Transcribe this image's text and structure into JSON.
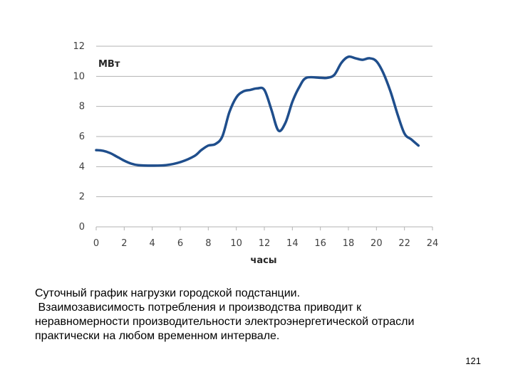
{
  "chart_data": {
    "type": "line",
    "xlabel": "часы",
    "ylabel": "МВт",
    "xlim": [
      0,
      24
    ],
    "ylim": [
      0,
      12
    ],
    "x_ticks": [
      "0",
      "2",
      "4",
      "6",
      "8",
      "10",
      "12",
      "14",
      "16",
      "18",
      "20",
      "22",
      "24"
    ],
    "y_ticks": [
      "0",
      "2",
      "4",
      "6",
      "8",
      "10",
      "12"
    ],
    "grid": true,
    "series": [
      {
        "color": "#1f4e8c",
        "points": [
          [
            0,
            5.1
          ],
          [
            0.5,
            5.05
          ],
          [
            1,
            4.9
          ],
          [
            1.5,
            4.65
          ],
          [
            2,
            4.4
          ],
          [
            2.5,
            4.2
          ],
          [
            3,
            4.1
          ],
          [
            4,
            4.07
          ],
          [
            5,
            4.1
          ],
          [
            6,
            4.3
          ],
          [
            7,
            4.7
          ],
          [
            7.5,
            5.1
          ],
          [
            8,
            5.4
          ],
          [
            8.5,
            5.5
          ],
          [
            9,
            6.0
          ],
          [
            9.5,
            7.6
          ],
          [
            10,
            8.6
          ],
          [
            10.5,
            9.0
          ],
          [
            11,
            9.1
          ],
          [
            11.5,
            9.2
          ],
          [
            12,
            9.1
          ],
          [
            12.5,
            7.8
          ],
          [
            13,
            6.4
          ],
          [
            13.5,
            6.9
          ],
          [
            14,
            8.3
          ],
          [
            14.5,
            9.3
          ],
          [
            15,
            9.9
          ],
          [
            16,
            9.9
          ],
          [
            16.5,
            9.9
          ],
          [
            17,
            10.1
          ],
          [
            17.5,
            10.9
          ],
          [
            18,
            11.3
          ],
          [
            18.5,
            11.2
          ],
          [
            19,
            11.1
          ],
          [
            19.5,
            11.2
          ],
          [
            20,
            11.0
          ],
          [
            20.5,
            10.2
          ],
          [
            21,
            9.0
          ],
          [
            21.5,
            7.5
          ],
          [
            22,
            6.2
          ],
          [
            22.5,
            5.8
          ],
          [
            23,
            5.4
          ]
        ]
      }
    ]
  },
  "caption": {
    "line1": "Суточный график нагрузки городской подстанции.",
    "line2": " Взаимозависимость потребления и производства приводит к",
    "line3": "неравномерности производительности электроэнергетической отрасли",
    "line4": "практически на любом временном интервале."
  },
  "page_number": "121"
}
